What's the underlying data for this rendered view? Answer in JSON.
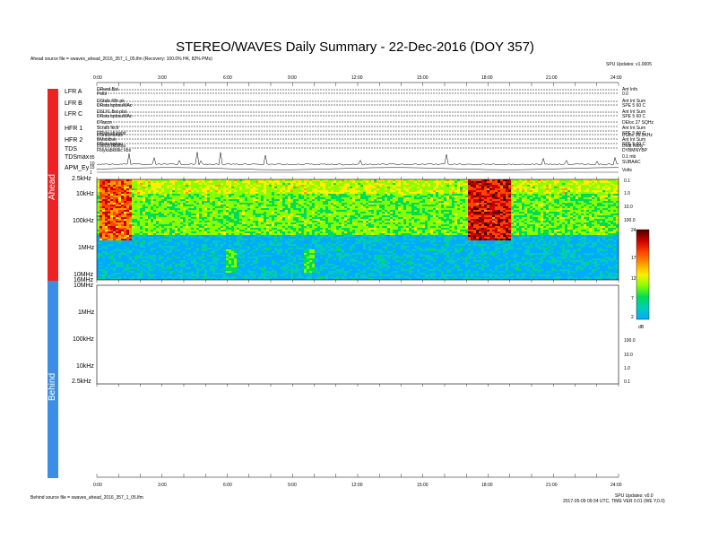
{
  "header": {
    "title": "STEREO/WAVES Daily Summary - 22-Dec-2016 (DOY 357)",
    "ahead_source": "Ahead source file = swaves_ahead_2016_357_1_05.lfm (Recovery: 100.0% HK, 82% PMs)",
    "top_right": "SPU Updates: v1.0005"
  },
  "footer": {
    "behind_source": "Behind source file = swaves_ahead_2016_357_1_05.lfm",
    "right_line1": "SPU Updates: v0.0",
    "right_line2": "2017-05-09 09:34 UTC, TIME VER 0.01 (WE Y,0.0)"
  },
  "sidebar": {
    "ahead_label": "Ahead",
    "behind_label": "Behind"
  },
  "time_axis": [
    "0:00",
    "3:00",
    "6:00",
    "9:00",
    "12:00",
    "15:00",
    "18:00",
    "21:00",
    "24:00"
  ],
  "hk_rows": [
    {
      "label": "LFR A",
      "sub": [
        "DRwrd Bst",
        "Polbl"
      ],
      "right": [
        "Ant Info",
        "0.0"
      ]
    },
    {
      "label": "LFR B",
      "sub": [
        "DSfalb Rflr pk",
        "DRsta bpbsuWAc"
      ],
      "right": [
        "Ant Int Sum",
        "SPE 5 60 C"
      ]
    },
    {
      "label": "LFR C",
      "sub": [
        "DSLYL Bst plst",
        "DRsta bpbsuWAc"
      ],
      "right": [
        "Ant Int Sum",
        "SPE 5 60 C"
      ]
    },
    {
      "label": "HFR 1",
      "sub": [
        "DTaccn",
        "Scralb lkclt",
        "DRsta sb bstst"
      ],
      "right": [
        "DEloc 27 SQHz",
        "Ant Int Sum",
        "SPE 5 60 C"
      ]
    },
    {
      "label": "HFR 2",
      "sub": [
        "DSraUmlAbs",
        "BMsblbvk",
        "DRsta bpbsu"
      ],
      "right": [
        "DSloc 26.5KHz",
        "Ant Int Sum",
        "SPE 5 60 C"
      ]
    },
    {
      "label": "TDS",
      "sub": [
        "Dlxtcsl blbstsa",
        "Fblykabkblkc kbs"
      ],
      "right": [
        "Dlrat Rblty",
        "DYBMNYBP"
      ]
    }
  ],
  "tds_rows": {
    "tdsmax": "TDSmax",
    "tdsmax_val": "85",
    "apm": "APM_Ey",
    "ticks": [
      "10",
      "15",
      "1"
    ],
    "right": [
      "0.1 mb",
      "SUBAAC"
    ],
    "volts": "Volts"
  },
  "freq_labels": {
    "ahead": [
      "2.5kHz",
      "10kHz",
      "100kHz",
      "1MHz",
      "10MHz",
      "16MHz"
    ],
    "behind": [
      "10MHz",
      "1MHz",
      "100kHz",
      "10kHz",
      "2.5kHz"
    ]
  },
  "right_scale": {
    "ahead": [
      "0.1",
      "1.0",
      "10.0",
      "100.0"
    ],
    "behind": [
      "100.0",
      "10.0",
      "1.0",
      "0.1"
    ]
  },
  "colorbar": {
    "ticks": [
      "24",
      "17",
      "12",
      "7",
      "2"
    ],
    "unit": "dB",
    "colors": [
      "#4b0000",
      "#cc0000",
      "#ff4400",
      "#ff9900",
      "#ffee00",
      "#88ff00",
      "#00dd55",
      "#00ccbb",
      "#00aaff"
    ]
  },
  "chart_data": {
    "type": "heatmap",
    "title": "STEREO/WAVES Daily Summary - 22-Dec-2016 (DOY 357)",
    "x": {
      "unit": "hours UT",
      "range": [
        0,
        24
      ],
      "ticks": [
        "0:00",
        "3:00",
        "6:00",
        "9:00",
        "12:00",
        "15:00",
        "18:00",
        "21:00",
        "24:00"
      ]
    },
    "y": {
      "scale": "log",
      "ticks": [
        "2.5kHz",
        "10kHz",
        "100kHz",
        "1MHz",
        "10MHz",
        "16MHz"
      ]
    },
    "z": {
      "unit": "dB",
      "range": [
        2,
        24
      ]
    },
    "features": [
      {
        "name": "low-frequency burst",
        "time": [
          0.1,
          1.5
        ],
        "freq": "2.5kHz-200kHz",
        "level_db": [
          14,
          22
        ]
      },
      {
        "name": "type III burst",
        "time": [
          17.0,
          19.0
        ],
        "freq": "2.5kHz-300kHz",
        "level_db": [
          17,
          24
        ]
      },
      {
        "name": "narrowband emission",
        "time": [
          5.9,
          6.4
        ],
        "freq": "1MHz-5MHz",
        "level_db": [
          7,
          10
        ]
      },
      {
        "name": "narrowband emission",
        "time": [
          9.5,
          10.0
        ],
        "freq": "1MHz-3MHz",
        "level_db": [
          7,
          10
        ]
      }
    ],
    "background": {
      "below_100kHz_db": [
        7,
        12
      ],
      "above_100kHz_db": [
        2,
        4
      ]
    },
    "behind": "no data"
  }
}
